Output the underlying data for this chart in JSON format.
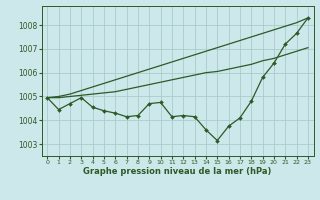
{
  "background_color": "#cce8ea",
  "grid_color": "#aacccc",
  "line_color": "#2d5a27",
  "text_color": "#2d5a27",
  "xlabel": "Graphe pression niveau de la mer (hPa)",
  "ylim": [
    1002.5,
    1008.8
  ],
  "xlim": [
    -0.5,
    23.5
  ],
  "yticks": [
    1003,
    1004,
    1005,
    1006,
    1007,
    1008
  ],
  "xticks": [
    0,
    1,
    2,
    3,
    4,
    5,
    6,
    7,
    8,
    9,
    10,
    11,
    12,
    13,
    14,
    15,
    16,
    17,
    18,
    19,
    20,
    21,
    22,
    23
  ],
  "series": {
    "main": [
      1004.95,
      1004.45,
      1004.7,
      1004.95,
      1004.55,
      1004.4,
      1004.3,
      1004.15,
      1004.2,
      1004.7,
      1004.75,
      1004.15,
      1004.2,
      1004.15,
      1003.6,
      1003.15,
      1003.75,
      1004.1,
      1004.8,
      1005.8,
      1006.4,
      1007.2,
      1007.65,
      1008.3
    ],
    "upper1": [
      1004.95,
      1004.95,
      1005.0,
      1005.05,
      1005.1,
      1005.15,
      1005.2,
      1005.3,
      1005.4,
      1005.5,
      1005.6,
      1005.7,
      1005.8,
      1005.9,
      1006.0,
      1006.05,
      1006.15,
      1006.25,
      1006.35,
      1006.5,
      1006.6,
      1006.75,
      1006.9,
      1007.05
    ],
    "upper2": [
      1004.95,
      1005.0,
      1005.1,
      1005.25,
      1005.4,
      1005.55,
      1005.7,
      1005.85,
      1006.0,
      1006.15,
      1006.3,
      1006.45,
      1006.6,
      1006.75,
      1006.9,
      1007.05,
      1007.2,
      1007.35,
      1007.5,
      1007.65,
      1007.8,
      1007.95,
      1008.1,
      1008.3
    ]
  }
}
